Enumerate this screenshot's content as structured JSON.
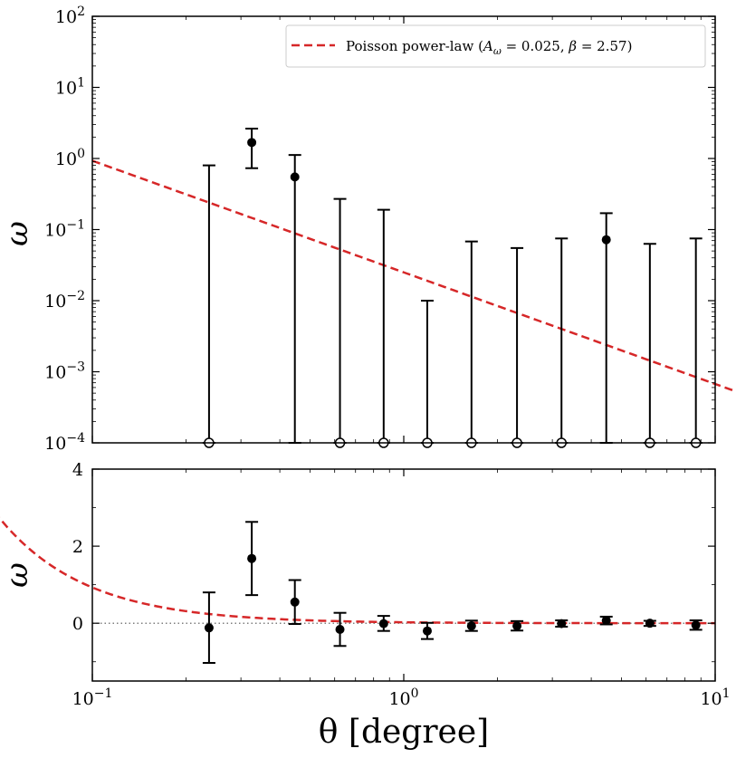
{
  "colors": {
    "model_line": "#d62728",
    "points": "#000000",
    "zero_line": "#555555"
  },
  "chart_data": [
    {
      "panel": "top",
      "type": "scatter",
      "x_scale": "log",
      "y_scale": "log",
      "xlim": [
        0.1,
        10
      ],
      "ylim": [
        0.0001,
        100
      ],
      "ylabel": "ω",
      "ytick_labels": [
        {
          "base": "10",
          "exp": "−4",
          "value": 0.0001
        },
        {
          "base": "10",
          "exp": "−3",
          "value": 0.001
        },
        {
          "base": "10",
          "exp": "−2",
          "value": 0.01
        },
        {
          "base": "10",
          "exp": "−1",
          "value": 0.1
        },
        {
          "base": "10",
          "exp": "0",
          "value": 1
        },
        {
          "base": "10",
          "exp": "1",
          "value": 10
        },
        {
          "base": "10",
          "exp": "2",
          "value": 100
        }
      ],
      "legend": {
        "placement": "top-right",
        "entries": [
          {
            "label": "Poisson power-law",
            "param_a": "A",
            "param_a_sub": "ω",
            "param_a_value": " = 0.025, ",
            "param_b": "β",
            "param_b_value": " = 2.57)"
          }
        ]
      },
      "model": {
        "name": "Poisson power-law",
        "A": 0.025,
        "beta": 2.57
      },
      "points": [
        {
          "x": 0.237,
          "y": null,
          "err_low": null,
          "err_high": 0.8
        },
        {
          "x": 0.325,
          "y": 1.68,
          "err_low": 0.73,
          "err_high": 2.63
        },
        {
          "x": 0.447,
          "y": 0.55,
          "err_low": null,
          "err_high": 1.12
        },
        {
          "x": 0.624,
          "y": null,
          "err_low": null,
          "err_high": 0.27
        },
        {
          "x": 0.862,
          "y": null,
          "err_low": null,
          "err_high": 0.19
        },
        {
          "x": 1.19,
          "y": null,
          "err_low": null,
          "err_high": 0.01
        },
        {
          "x": 1.65,
          "y": null,
          "err_low": null,
          "err_high": 0.068
        },
        {
          "x": 2.31,
          "y": null,
          "err_low": null,
          "err_high": 0.055
        },
        {
          "x": 3.21,
          "y": null,
          "err_low": null,
          "err_high": 0.075
        },
        {
          "x": 4.47,
          "y": 0.072,
          "err_low": null,
          "err_high": 0.17
        },
        {
          "x": 6.17,
          "y": null,
          "err_low": null,
          "err_high": 0.063
        },
        {
          "x": 8.67,
          "y": null,
          "err_low": null,
          "err_high": 0.075
        }
      ]
    },
    {
      "panel": "bottom",
      "type": "scatter",
      "x_scale": "log",
      "y_scale": "linear",
      "xlim": [
        0.1,
        10
      ],
      "ylim": [
        -1.5,
        4
      ],
      "xlabel": "θ [degree]",
      "ylabel": "ω",
      "ytick_labels": [
        {
          "label": "0",
          "value": 0
        },
        {
          "label": "2",
          "value": 2
        },
        {
          "label": "4",
          "value": 4
        }
      ],
      "xtick_labels": [
        {
          "base": "10",
          "exp": "−1",
          "value": 0.1
        },
        {
          "base": "10",
          "exp": "0",
          "value": 1
        },
        {
          "base": "10",
          "exp": "1",
          "value": 10
        }
      ],
      "model": {
        "name": "Poisson power-law",
        "A": 0.025,
        "beta": 2.57
      },
      "reference_line": {
        "y": 0,
        "style": "dotted"
      },
      "points": [
        {
          "x": 0.237,
          "y": -0.12,
          "err_low": -1.03,
          "err_high": 0.8
        },
        {
          "x": 0.325,
          "y": 1.68,
          "err_low": 0.73,
          "err_high": 2.63
        },
        {
          "x": 0.447,
          "y": 0.55,
          "err_low": -0.02,
          "err_high": 1.12
        },
        {
          "x": 0.624,
          "y": -0.16,
          "err_low": -0.59,
          "err_high": 0.27
        },
        {
          "x": 0.862,
          "y": -0.01,
          "err_low": -0.2,
          "err_high": 0.19
        },
        {
          "x": 1.19,
          "y": -0.2,
          "err_low": -0.41,
          "err_high": 0.01
        },
        {
          "x": 1.65,
          "y": -0.07,
          "err_low": -0.2,
          "err_high": 0.068
        },
        {
          "x": 2.31,
          "y": -0.07,
          "err_low": -0.19,
          "err_high": 0.055
        },
        {
          "x": 3.21,
          "y": -0.01,
          "err_low": -0.09,
          "err_high": 0.075
        },
        {
          "x": 4.47,
          "y": 0.072,
          "err_low": -0.03,
          "err_high": 0.17
        },
        {
          "x": 6.17,
          "y": 0.0,
          "err_low": -0.07,
          "err_high": 0.063
        },
        {
          "x": 8.67,
          "y": -0.05,
          "err_low": -0.17,
          "err_high": 0.075
        }
      ]
    }
  ]
}
